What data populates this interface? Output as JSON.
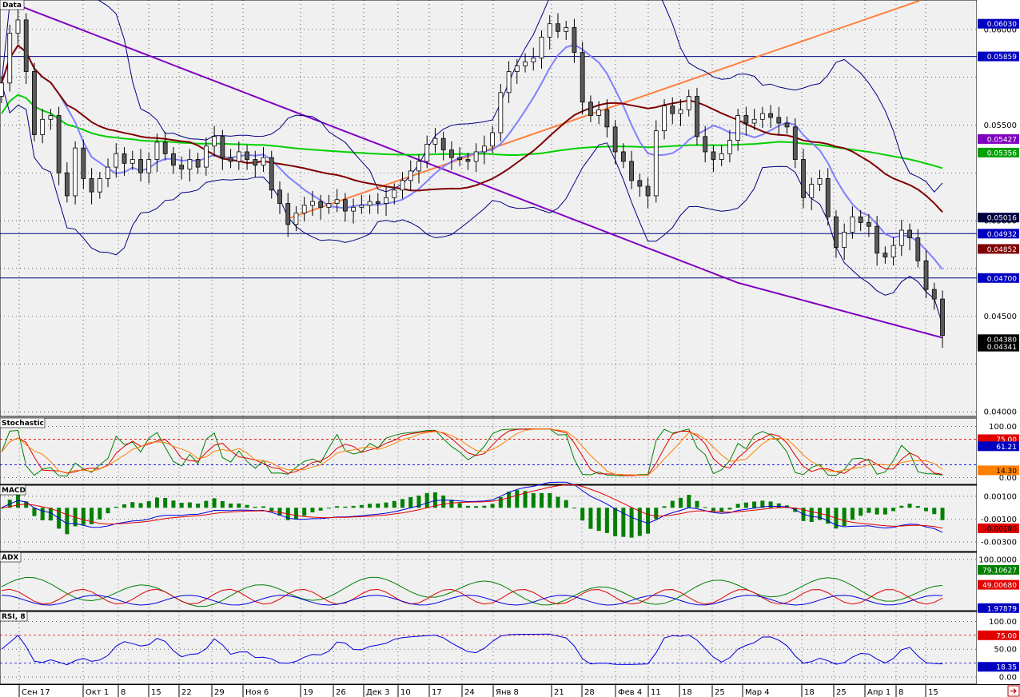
{
  "panels": {
    "data_label": "Data",
    "stoch_label": "Stochastic",
    "macd_label": "MACD",
    "adx_label": "ADX",
    "rsi_label": "RSI, 8"
  },
  "x_labels": [
    "Сен 17",
    "Окт 1",
    "8",
    "15",
    "22",
    "29",
    "Ноя 6",
    "19",
    "26",
    "Дек 3",
    "10",
    "17",
    "24",
    "Янв 8",
    "21",
    "28",
    "Фев 4",
    "11",
    "18",
    "25",
    "Мар 4",
    "18",
    "25",
    "Апр 1",
    "8",
    "15"
  ],
  "colors": {
    "bg": "#f0f0f0",
    "candle": "#5a5a5a",
    "bollinger": "#000080",
    "sma_fast": "#8080ff",
    "sma_mid": "#800000",
    "sma_slow_purple": "#8000c0",
    "sma_green": "#00d000",
    "trendline": "#ff8040",
    "hline": "#000080",
    "red": "#e00000",
    "green": "#008000",
    "blue": "#0000e0",
    "orange": "#ff8000"
  },
  "price_axis": {
    "ticks": [
      "0.06000",
      "0.05500",
      "0.05000",
      "0.04500",
      "0.04000"
    ],
    "tags": [
      {
        "text": "0.06030",
        "bg": "#0000c0",
        "fg": "#ffffff"
      },
      {
        "text": "0.05859",
        "bg": "#0000c0",
        "fg": "#ffffff"
      },
      {
        "text": "0.05427",
        "bg": "#8000c0",
        "fg": "#ffffff"
      },
      {
        "text": "0.05356",
        "bg": "#00a000",
        "fg": "#ffffff"
      },
      {
        "text": "0.05016",
        "bg": "#000040",
        "fg": "#ffffff"
      },
      {
        "text": "0.04932",
        "bg": "#0000c0",
        "fg": "#ffffff"
      },
      {
        "text": "0.04852",
        "bg": "#800000",
        "fg": "#ffffff"
      },
      {
        "text": "0.04700",
        "bg": "#0000c0",
        "fg": "#ffffff"
      },
      {
        "text": "0.04380",
        "bg": "#000000",
        "fg": "#ffffff"
      },
      {
        "text": "0.04341",
        "bg": "#000000",
        "fg": "#ffffff"
      }
    ]
  },
  "stoch_axis": {
    "ticks": [
      "100.00",
      "0.00"
    ],
    "tags": [
      {
        "text": "75.00",
        "bg": "#e00000",
        "fg": "#ffffff"
      },
      {
        "text": "61.21",
        "bg": "#0000c0",
        "fg": "#ffffff"
      },
      {
        "text": "14.30",
        "bg": "#ff8000",
        "fg": "#000000"
      }
    ]
  },
  "macd_axis": {
    "ticks": [
      "0.00100",
      "-0.00100",
      "-0.00300"
    ],
    "tags": [
      {
        "text": "-0.00180",
        "bg": "#e00000",
        "fg": "#000000"
      }
    ]
  },
  "adx_axis": {
    "ticks": [
      "100.0000"
    ],
    "tags": [
      {
        "text": "79.10627",
        "bg": "#008000",
        "fg": "#ffffff"
      },
      {
        "text": "49.00680",
        "bg": "#e00000",
        "fg": "#ffffff"
      },
      {
        "text": "1.97879",
        "bg": "#0000c0",
        "fg": "#ffffff"
      }
    ]
  },
  "rsi_axis": {
    "ticks": [
      "100.00",
      "50.00",
      "0.00"
    ],
    "tags": [
      {
        "text": "75.00",
        "bg": "#e00000",
        "fg": "#ffffff"
      },
      {
        "text": "18.35",
        "bg": "#0000c0",
        "fg": "#ffffff"
      }
    ]
  },
  "chart_data": {
    "type": "candlestick",
    "title": "Data",
    "x_range": [
      "Сен 17",
      "Апр 15"
    ],
    "price_ylim": [
      0.0398,
      0.0615
    ],
    "horizontal_levels": [
      0.05859,
      0.04932,
      0.047
    ],
    "trendline": {
      "from": [
        "Ноя 19",
        0.0501
      ],
      "to": [
        "Апр 15",
        0.0615
      ]
    },
    "close": [
      0.0572,
      0.0598,
      0.0605,
      0.0578,
      0.0545,
      0.0553,
      0.0555,
      0.0525,
      0.0513,
      0.0538,
      0.0522,
      0.0515,
      0.0522,
      0.0528,
      0.0535,
      0.053,
      0.0532,
      0.0525,
      0.0532,
      0.0541,
      0.0535,
      0.0529,
      0.0527,
      0.0532,
      0.0528,
      0.0539,
      0.0544,
      0.0533,
      0.0531,
      0.0536,
      0.0532,
      0.0529,
      0.0533,
      0.0516,
      0.0509,
      0.0498,
      0.0504,
      0.0508,
      0.051,
      0.0507,
      0.0509,
      0.0511,
      0.0505,
      0.0507,
      0.0508,
      0.051,
      0.0509,
      0.0512,
      0.0516,
      0.0521,
      0.0526,
      0.0531,
      0.054,
      0.0543,
      0.0537,
      0.0533,
      0.0532,
      0.0531,
      0.0536,
      0.0539,
      0.0546,
      0.0567,
      0.0578,
      0.0581,
      0.0583,
      0.0585,
      0.0596,
      0.0603,
      0.0599,
      0.0601,
      0.0588,
      0.0562,
      0.0555,
      0.0558,
      0.0549,
      0.0536,
      0.0531,
      0.0521,
      0.0518,
      0.0513,
      0.0547,
      0.056,
      0.0556,
      0.0558,
      0.0565,
      0.0544,
      0.0536,
      0.0532,
      0.0535,
      0.0542,
      0.0555,
      0.0551,
      0.0553,
      0.0556,
      0.0554,
      0.0551,
      0.0549,
      0.0532,
      0.0512,
      0.0519,
      0.0522,
      0.0502,
      0.0486,
      0.0494,
      0.0502,
      0.0499,
      0.0497,
      0.0483,
      0.0481,
      0.0487,
      0.0495,
      0.0491,
      0.0479,
      0.0464,
      0.0459,
      0.044
    ]
  }
}
